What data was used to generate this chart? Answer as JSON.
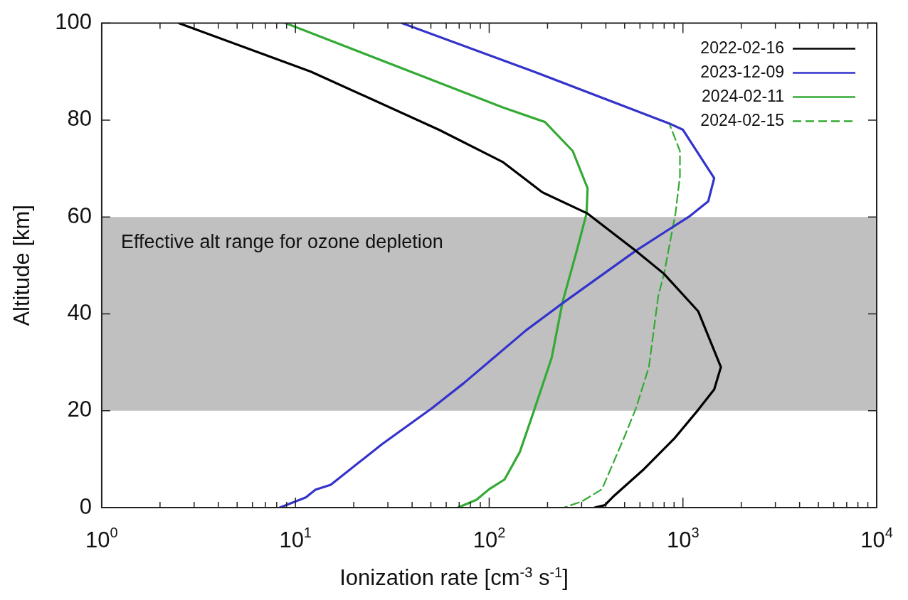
{
  "chart_data": {
    "type": "line",
    "xlabel": "Ionization rate [cm$^{-3}$ s$^{-1}$]",
    "ylabel": "Altitude [km]",
    "log": "x",
    "xlim": [
      1,
      10000
    ],
    "ylim": [
      0,
      100
    ],
    "xticks": [
      {
        "value": 1,
        "label": "10$^{0}$"
      },
      {
        "value": 2,
        "label": null
      },
      {
        "value": 3,
        "label": null
      },
      {
        "value": 4,
        "label": null
      },
      {
        "value": 5,
        "label": null
      },
      {
        "value": 6,
        "label": null
      },
      {
        "value": 7,
        "label": null
      },
      {
        "value": 8,
        "label": null
      },
      {
        "value": 9,
        "label": null
      },
      {
        "value": 10,
        "label": "10$^{1}$"
      },
      {
        "value": 20,
        "label": null
      },
      {
        "value": 30,
        "label": null
      },
      {
        "value": 40,
        "label": null
      },
      {
        "value": 50,
        "label": null
      },
      {
        "value": 60,
        "label": null
      },
      {
        "value": 70,
        "label": null
      },
      {
        "value": 80,
        "label": null
      },
      {
        "value": 90,
        "label": null
      },
      {
        "value": 100,
        "label": "10$^{2}$"
      },
      {
        "value": 200,
        "label": null
      },
      {
        "value": 300,
        "label": null
      },
      {
        "value": 400,
        "label": null
      },
      {
        "value": 500,
        "label": null
      },
      {
        "value": 600,
        "label": null
      },
      {
        "value": 700,
        "label": null
      },
      {
        "value": 800,
        "label": null
      },
      {
        "value": 900,
        "label": null
      },
      {
        "value": 1000,
        "label": "10$^{3}$"
      },
      {
        "value": 2000,
        "label": null
      },
      {
        "value": 3000,
        "label": null
      },
      {
        "value": 4000,
        "label": null
      },
      {
        "value": 5000,
        "label": null
      },
      {
        "value": 6000,
        "label": null
      },
      {
        "value": 7000,
        "label": null
      },
      {
        "value": 8000,
        "label": null
      },
      {
        "value": 9000,
        "label": null
      },
      {
        "value": 10000,
        "label": "10$^{4}$"
      }
    ],
    "yticks": [
      0,
      20,
      40,
      60,
      80,
      100
    ],
    "grid": false,
    "legend": "top right",
    "marker": "none",
    "bands": [
      {
        "axis": "y",
        "from": 20,
        "to": 60,
        "label": "Effective alt range for ozone depletion",
        "color": "#c0c0c0"
      }
    ],
    "series": [
      {
        "name": "2022-02-16",
        "color": "#000000",
        "line_style": "solid",
        "x": [
          2.5,
          12,
          55,
          118,
          188,
          322,
          571,
          796,
          1200,
          1570,
          1450,
          1200,
          900,
          620,
          443,
          395,
          350
        ],
        "values": [
          100,
          90,
          78,
          71.3,
          65.1,
          60.7,
          53,
          48.3,
          40.5,
          29,
          24.4,
          20.2,
          14.2,
          7.7,
          2.5,
          0.5,
          0
        ]
      },
      {
        "name": "2023-12-09",
        "color": "#3333cc",
        "line_style": "solid",
        "x": [
          35.5,
          170,
          850,
          1000,
          1450,
          1350,
          1070,
          830,
          570,
          243,
          155,
          74,
          50.6,
          28,
          15.2,
          12.7,
          11.3,
          8.3
        ],
        "values": [
          100,
          90,
          79.3,
          78,
          68,
          63.2,
          60,
          57.2,
          53,
          42.4,
          36.6,
          25.7,
          20.5,
          13.1,
          4.7,
          3.7,
          2.1,
          0
        ]
      },
      {
        "name": "2024-02-11",
        "color": "#33aa33",
        "line_style": "solid",
        "x": [
          8.9,
          118,
          194,
          270,
          322,
          318,
          283,
          239,
          210,
          171,
          144,
          120,
          100,
          86,
          69
        ],
        "values": [
          100,
          82.6,
          79.6,
          73.6,
          65.9,
          60.7,
          53,
          42.4,
          30.9,
          20.2,
          11.5,
          5.8,
          3.8,
          1.6,
          0
        ]
      },
      {
        "name": "2024-02-15",
        "color": "#33aa33",
        "line_style": "dashed",
        "x": [
          35.5,
          170,
          850,
          965,
          965,
          915,
          800,
          746,
          667,
          572,
          494,
          382,
          302,
          243
        ],
        "values": [
          100,
          90,
          79.3,
          73.6,
          68.4,
          60.7,
          48.4,
          43.7,
          29,
          20.5,
          14.2,
          3.8,
          1.3,
          0
        ]
      }
    ]
  }
}
